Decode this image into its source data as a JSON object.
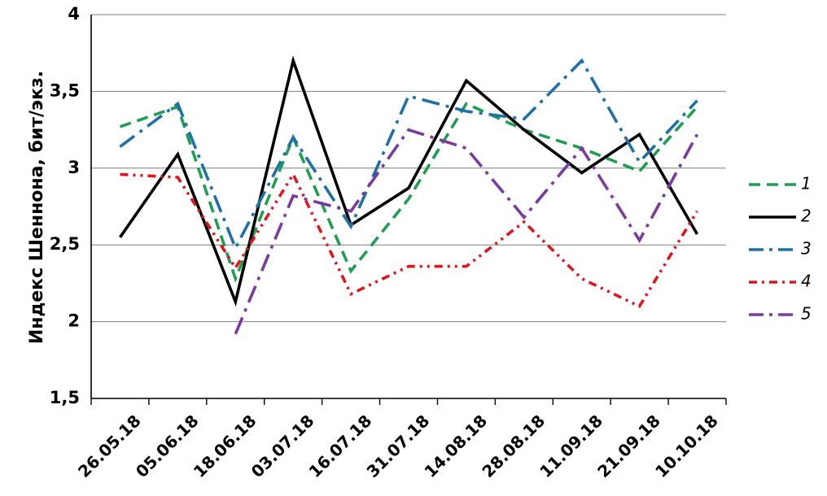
{
  "chart_data": {
    "type": "line",
    "title": "",
    "xlabel": "",
    "ylabel": "Индекс Шеннона, бит/экз.",
    "ylim": [
      1.5,
      4
    ],
    "yticks": [
      "1,5",
      "2",
      "2,5",
      "3",
      "3,5",
      "4"
    ],
    "grid": true,
    "legend_position": "right",
    "categories": [
      "26.05.18",
      "05.06.18",
      "18.06.18",
      "03.07.18",
      "16.07.18",
      "31.07.18",
      "14.08.18",
      "28.08.18",
      "11.09.18",
      "21.09.18",
      "10.10.18"
    ],
    "series": [
      {
        "name": "1",
        "color": "#1e9e50",
        "dash": "dashed",
        "values": [
          3.27,
          3.4,
          2.28,
          3.2,
          2.33,
          2.8,
          3.42,
          3.25,
          3.13,
          2.98,
          3.4
        ]
      },
      {
        "name": "2",
        "color": "#000000",
        "dash": "solid",
        "values": [
          2.55,
          3.09,
          2.13,
          3.7,
          2.63,
          2.87,
          3.57,
          3.25,
          2.97,
          3.22,
          2.57
        ]
      },
      {
        "name": "3",
        "color": "#1f6fa8",
        "dash": "long-dash-dot",
        "values": [
          3.14,
          3.42,
          2.48,
          3.2,
          2.62,
          3.47,
          3.37,
          3.32,
          3.7,
          3.04,
          3.44
        ]
      },
      {
        "name": "4",
        "color": "#e0161d",
        "dash": "dash-dot-dot",
        "values": [
          2.96,
          2.94,
          2.35,
          2.96,
          2.18,
          2.36,
          2.36,
          2.65,
          2.28,
          2.1,
          2.72
        ]
      },
      {
        "name": "5",
        "color": "#7a3aa0",
        "dash": "long-dash-dot",
        "values": [
          null,
          null,
          1.92,
          2.82,
          2.72,
          3.25,
          3.13,
          2.68,
          3.13,
          2.53,
          3.22
        ]
      }
    ]
  }
}
